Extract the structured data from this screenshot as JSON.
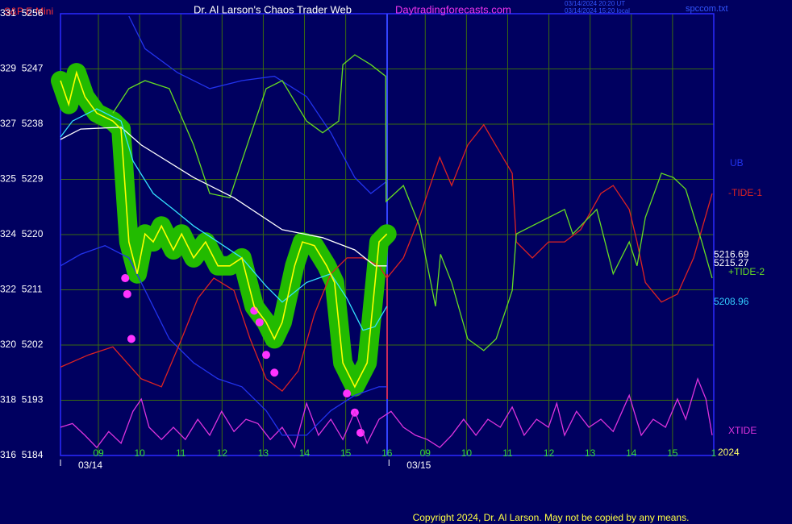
{
  "chart_data": {
    "type": "line",
    "title": "Dr. Al Larson's Chaos Trader Web",
    "instrument": "S&P E-Mini",
    "site": "Daytradingforecasts.com",
    "timestamp_ut": "03/14/2024 20:20 UT",
    "timestamp_local": "03/14/2024 15:20 local",
    "file": "spccom.txt",
    "copyright": "Copyright 2024, Dr. Al Larson. May not be copied by any means.",
    "year": "2024",
    "grid": true,
    "xlim": [
      0,
      15.85
    ],
    "ylim": [
      5184,
      5256
    ],
    "yticks": [
      {
        "value": 5256,
        "label": "331  5256"
      },
      {
        "value": 5247,
        "label": "329  5247"
      },
      {
        "value": 5238,
        "label": "327  5238"
      },
      {
        "value": 5229,
        "label": "325  5229"
      },
      {
        "value": 5220,
        "label": "324  5220"
      },
      {
        "value": 5211,
        "label": "322  5211"
      },
      {
        "value": 5202,
        "label": "320  5202"
      },
      {
        "value": 5193,
        "label": "318  5193"
      },
      {
        "value": 5184,
        "label": "316  5184"
      }
    ],
    "xticks": [
      {
        "value": 0.92,
        "label": "09"
      },
      {
        "value": 1.92,
        "label": "10"
      },
      {
        "value": 2.92,
        "label": "11"
      },
      {
        "value": 3.92,
        "label": "12"
      },
      {
        "value": 4.92,
        "label": "13"
      },
      {
        "value": 5.92,
        "label": "14"
      },
      {
        "value": 6.92,
        "label": "15"
      },
      {
        "value": 7.92,
        "label": "16"
      },
      {
        "value": 8.85,
        "label": "09"
      },
      {
        "value": 9.85,
        "label": "10"
      },
      {
        "value": 10.85,
        "label": "11"
      },
      {
        "value": 11.85,
        "label": "12"
      },
      {
        "value": 12.85,
        "label": "13"
      },
      {
        "value": 13.85,
        "label": "14"
      },
      {
        "value": 14.85,
        "label": "15"
      },
      {
        "value": 15.85,
        "label": "1"
      }
    ],
    "date_labels": [
      {
        "value": 0,
        "label": "03/14"
      },
      {
        "value": 7.97,
        "label": "03/15"
      }
    ],
    "end_values": [
      {
        "value": 5216.69,
        "color": "#ffffff"
      },
      {
        "value": 5215.27,
        "color": "#ffffff"
      },
      {
        "value": 5208.96,
        "color": "#33ccff"
      }
    ],
    "series": [
      {
        "color": "#ffffff",
        "x": [
          0,
          0.49,
          1.47,
          1.96,
          3.23,
          4.21,
          5.38,
          6.36,
          7.14,
          7.63,
          7.92
        ],
        "values": [
          5235.5,
          5237.2,
          5237.5,
          5234.6,
          5229.3,
          5226.0,
          5220.8,
          5219.5,
          5217.5,
          5214.9,
          5214.9
        ]
      },
      {
        "color": "#33e0ff",
        "x": [
          0,
          0.29,
          0.88,
          1.47,
          1.76,
          2.25,
          2.74,
          3.23,
          3.82,
          4.4,
          4.99,
          5.38,
          5.97,
          6.56,
          6.95,
          7.34,
          7.63,
          7.92
        ],
        "values": [
          5235.9,
          5238.5,
          5240.5,
          5238.5,
          5232.0,
          5226.7,
          5224.1,
          5221.4,
          5218.8,
          5216.2,
          5211.6,
          5209.0,
          5212.2,
          5213.6,
          5209.6,
          5204.4,
          5205.0,
          5208.3
        ]
      },
      {
        "color": "#ffff00",
        "halo": "#22bb00",
        "x": [
          0,
          0.2,
          0.39,
          0.59,
          0.88,
          1.27,
          1.47,
          1.66,
          1.86,
          2.05,
          2.25,
          2.45,
          2.74,
          2.94,
          3.23,
          3.52,
          3.82,
          4.11,
          4.4,
          4.7,
          4.99,
          5.19,
          5.38,
          5.68,
          5.87,
          6.16,
          6.46,
          6.65,
          6.85,
          7.14,
          7.44,
          7.73,
          7.92
        ],
        "values": [
          5245.1,
          5241.2,
          5246.4,
          5242.5,
          5239.8,
          5238.5,
          5237.2,
          5218.8,
          5213.6,
          5220.1,
          5218.8,
          5221.4,
          5217.5,
          5220.1,
          5216.2,
          5218.8,
          5214.9,
          5214.9,
          5216.2,
          5208.3,
          5205.7,
          5203.0,
          5205.7,
          5214.9,
          5218.8,
          5218.2,
          5214.9,
          5212.2,
          5199.1,
          5195.2,
          5199.1,
          5218.8,
          5220.1
        ]
      },
      {
        "name": "+TIDE-2",
        "color": "#66dd22",
        "x": [
          1.27,
          1.66,
          2.05,
          2.64,
          3.23,
          3.62,
          4.11,
          4.4,
          4.99,
          5.38,
          5.97,
          6.36,
          6.75,
          6.85,
          7.14,
          7.53,
          7.89,
          7.9,
          8.32,
          8.71,
          9.1,
          9.22,
          9.49,
          9.88,
          10.27,
          10.57,
          10.96,
          11.06,
          12.23,
          12.43,
          13.01,
          13.41,
          13.8,
          13.99,
          14.19,
          14.58,
          14.87,
          15.17,
          15.56,
          15.81
        ],
        "values": [
          5239.8,
          5243.8,
          5245.1,
          5243.8,
          5234.6,
          5226.7,
          5226.0,
          5232.0,
          5243.8,
          5245.1,
          5238.5,
          5236.6,
          5238.5,
          5247.7,
          5249.3,
          5247.7,
          5245.8,
          5225.4,
          5228.0,
          5221.4,
          5208.3,
          5216.8,
          5212.2,
          5203.0,
          5201.1,
          5203.0,
          5210.9,
          5220.1,
          5224.1,
          5220.1,
          5224.1,
          5213.6,
          5218.8,
          5214.9,
          5222.8,
          5230.0,
          5229.3,
          5227.4,
          5218.8,
          5212.9
        ]
      },
      {
        "name": "-TIDE-1",
        "color": "#dd2222",
        "x": [
          0,
          0.68,
          1.27,
          1.96,
          2.45,
          2.94,
          3.33,
          3.72,
          4.21,
          4.6,
          4.99,
          5.38,
          5.77,
          6.16,
          6.56,
          6.95,
          7.34,
          7.73,
          7.92,
          8.32,
          8.71,
          9.1,
          9.2,
          9.49,
          9.88,
          10.27,
          10.67,
          10.96,
          11.06,
          11.45,
          11.84,
          12.23,
          12.62,
          13.11,
          13.41,
          13.8,
          13.99,
          14.19,
          14.58,
          14.97,
          15.36,
          15.81
        ],
        "values": [
          5198.4,
          5200.4,
          5201.7,
          5196.5,
          5195.2,
          5203.0,
          5209.6,
          5212.9,
          5210.9,
          5203.0,
          5196.5,
          5194.5,
          5197.8,
          5207.0,
          5213.6,
          5216.2,
          5216.2,
          5214.9,
          5212.9,
          5216.2,
          5222.8,
          5230.6,
          5232.6,
          5228.0,
          5234.6,
          5237.9,
          5233.3,
          5230.0,
          5218.8,
          5216.2,
          5218.8,
          5218.8,
          5220.8,
          5226.7,
          5228.0,
          5224.1,
          5218.8,
          5212.2,
          5209.0,
          5210.3,
          5216.2,
          5226.7
        ]
      },
      {
        "name": "UB",
        "color": "#2233ee",
        "x": [
          1.66,
          2.05,
          2.84,
          3.62,
          4.4,
          5.19,
          5.97,
          6.56,
          7.14,
          7.53,
          7.92
        ],
        "values": [
          5255.6,
          5250.3,
          5246.4,
          5243.8,
          5245.1,
          5245.8,
          5242.5,
          5236.6,
          5229.3,
          5226.7,
          5228.7
        ]
      },
      {
        "color": "#2233ee",
        "x": [
          0,
          0.49,
          1.08,
          1.66,
          2.15,
          2.64,
          3.23,
          3.82,
          4.4,
          4.99,
          5.38,
          5.97,
          6.56,
          7.14,
          7.73,
          7.92
        ],
        "values": [
          5214.9,
          5216.8,
          5218.2,
          5216.2,
          5209.6,
          5203.0,
          5199.1,
          5196.5,
          5195.2,
          5191.3,
          5187.3,
          5187.3,
          5191.3,
          5193.8,
          5195.2,
          5195.2
        ]
      },
      {
        "name": "XTIDE",
        "color": "#dd33dd",
        "x": [
          0,
          0.29,
          0.59,
          0.88,
          1.17,
          1.47,
          1.76,
          1.96,
          2.15,
          2.45,
          2.74,
          3.03,
          3.33,
          3.62,
          3.91,
          4.21,
          4.5,
          4.79,
          5.09,
          5.38,
          5.68,
          5.97,
          6.26,
          6.56,
          6.85,
          7.14,
          7.44,
          7.73,
          8.02,
          8.32,
          8.61,
          8.9,
          9.2,
          9.49,
          9.78,
          10.08,
          10.37,
          10.67,
          10.96,
          11.25,
          11.55,
          11.84,
          12.04,
          12.23,
          12.52,
          12.82,
          13.11,
          13.41,
          13.8,
          14.09,
          14.38,
          14.68,
          14.97,
          15.17,
          15.46,
          15.66,
          15.81
        ],
        "values": [
          5188.6,
          5189.2,
          5187.3,
          5185.3,
          5187.9,
          5186.0,
          5191.2,
          5193.2,
          5188.6,
          5186.6,
          5188.6,
          5186.6,
          5189.9,
          5187.3,
          5191.2,
          5187.9,
          5189.9,
          5189.2,
          5186.6,
          5188.6,
          5185.3,
          5192.5,
          5187.3,
          5189.9,
          5186.6,
          5191.2,
          5186.0,
          5189.9,
          5191.2,
          5188.6,
          5187.3,
          5186.6,
          5185.3,
          5187.3,
          5189.9,
          5187.3,
          5189.9,
          5188.6,
          5191.9,
          5187.3,
          5189.9,
          5188.6,
          5192.5,
          5187.3,
          5191.2,
          5188.6,
          5189.9,
          5187.9,
          5193.8,
          5187.3,
          5189.9,
          5188.6,
          5193.2,
          5189.9,
          5196.5,
          5193.2,
          5187.3
        ]
      }
    ],
    "dots": {
      "color": "#ff33ff",
      "x": [
        1.57,
        1.62,
        1.72,
        4.7,
        4.83,
        4.99,
        5.19,
        6.95,
        7.14,
        7.28
      ],
      "values": [
        5212.9,
        5210.3,
        5203.0,
        5207.6,
        5205.7,
        5200.4,
        5197.5,
        5194.1,
        5191.0,
        5187.7
      ]
    }
  }
}
